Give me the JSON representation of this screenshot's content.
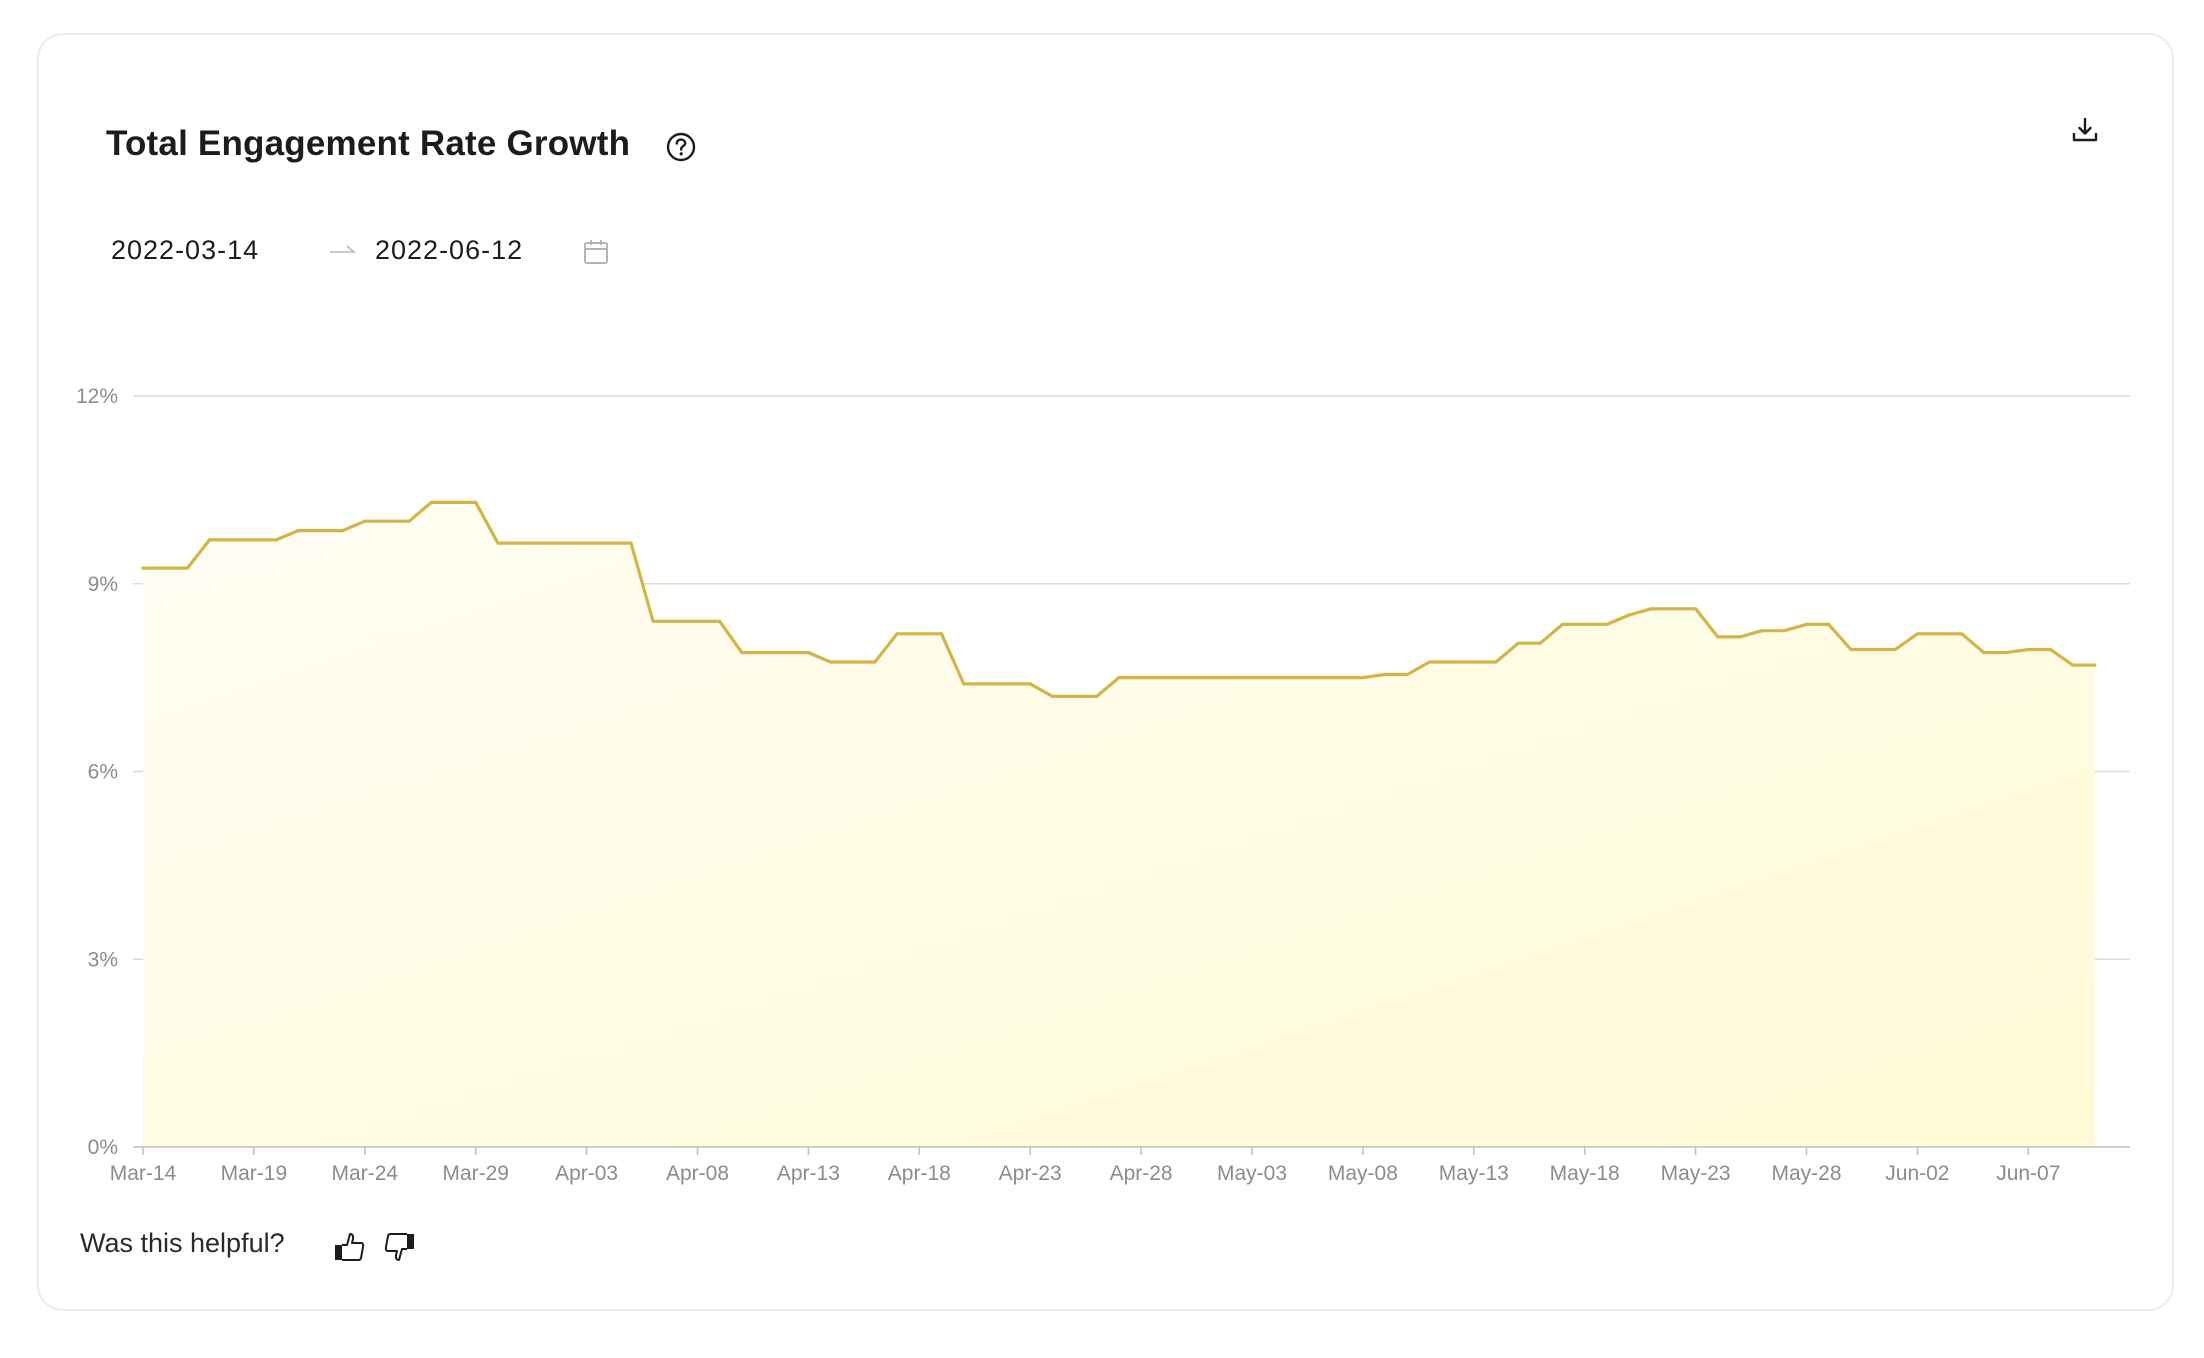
{
  "card": {
    "title": "Total Engagement Rate Growth",
    "help_icon": "question-circle-icon",
    "download_icon": "download-icon"
  },
  "date_range": {
    "start": "2022-03-14",
    "end": "2022-06-12",
    "separator_icon": "arrow-right-icon",
    "calendar_icon": "calendar-icon"
  },
  "feedback": {
    "prompt": "Was this helpful?",
    "thumbs_up_icon": "thumbs-up-icon",
    "thumbs_down_icon": "thumbs-down-icon"
  },
  "colors": {
    "line": "#d4b445",
    "fill_top": "#fffdf2",
    "fill_bottom": "#fffbd9",
    "grid": "#dcdcdc",
    "axis_text": "#8c8c8c"
  },
  "chart_data": {
    "type": "area",
    "title": "Total Engagement Rate Growth",
    "xlabel": "",
    "ylabel": "",
    "x_tick_labels": [
      "Mar-14",
      "Mar-19",
      "Mar-24",
      "Mar-29",
      "Apr-03",
      "Apr-08",
      "Apr-13",
      "Apr-18",
      "Apr-23",
      "Apr-28",
      "May-03",
      "May-08",
      "May-13",
      "May-18",
      "May-23",
      "May-28",
      "Jun-02",
      "Jun-07"
    ],
    "y_tick_labels": [
      "0%",
      "3%",
      "6%",
      "9%",
      "12%"
    ],
    "ylim": [
      0,
      12
    ],
    "grid": true,
    "legend": "none",
    "series": [
      {
        "points": [
          [
            "2022-03-14",
            9.25
          ],
          [
            "2022-03-16",
            9.25
          ],
          [
            "2022-03-17",
            9.7
          ],
          [
            "2022-03-20",
            9.7
          ],
          [
            "2022-03-21",
            9.85
          ],
          [
            "2022-03-23",
            9.85
          ],
          [
            "2022-03-24",
            10.0
          ],
          [
            "2022-03-26",
            10.0
          ],
          [
            "2022-03-27",
            10.3
          ],
          [
            "2022-03-29",
            10.3
          ],
          [
            "2022-03-30",
            9.65
          ],
          [
            "2022-04-05",
            9.65
          ],
          [
            "2022-04-06",
            8.4
          ],
          [
            "2022-04-09",
            8.4
          ],
          [
            "2022-04-10",
            7.9
          ],
          [
            "2022-04-13",
            7.9
          ],
          [
            "2022-04-14",
            7.75
          ],
          [
            "2022-04-16",
            7.75
          ],
          [
            "2022-04-17",
            8.2
          ],
          [
            "2022-04-19",
            8.2
          ],
          [
            "2022-04-20",
            7.4
          ],
          [
            "2022-04-23",
            7.4
          ],
          [
            "2022-04-24",
            7.2
          ],
          [
            "2022-04-26",
            7.2
          ],
          [
            "2022-04-27",
            7.5
          ],
          [
            "2022-05-08",
            7.5
          ],
          [
            "2022-05-09",
            7.55
          ],
          [
            "2022-05-10",
            7.55
          ],
          [
            "2022-05-11",
            7.75
          ],
          [
            "2022-05-14",
            7.75
          ],
          [
            "2022-05-15",
            8.05
          ],
          [
            "2022-05-16",
            8.05
          ],
          [
            "2022-05-17",
            8.35
          ],
          [
            "2022-05-19",
            8.35
          ],
          [
            "2022-05-20",
            8.5
          ],
          [
            "2022-05-21",
            8.6
          ],
          [
            "2022-05-23",
            8.6
          ],
          [
            "2022-05-24",
            8.15
          ],
          [
            "2022-05-25",
            8.15
          ],
          [
            "2022-05-26",
            8.25
          ],
          [
            "2022-05-27",
            8.25
          ],
          [
            "2022-05-28",
            8.35
          ],
          [
            "2022-05-29",
            8.35
          ],
          [
            "2022-05-30",
            7.95
          ],
          [
            "2022-06-01",
            7.95
          ],
          [
            "2022-06-02",
            8.2
          ],
          [
            "2022-06-04",
            8.2
          ],
          [
            "2022-06-05",
            7.9
          ],
          [
            "2022-06-06",
            7.9
          ],
          [
            "2022-06-07",
            7.95
          ],
          [
            "2022-06-08",
            7.95
          ],
          [
            "2022-06-09",
            7.7
          ],
          [
            "2022-06-10",
            7.7
          ]
        ]
      }
    ]
  }
}
